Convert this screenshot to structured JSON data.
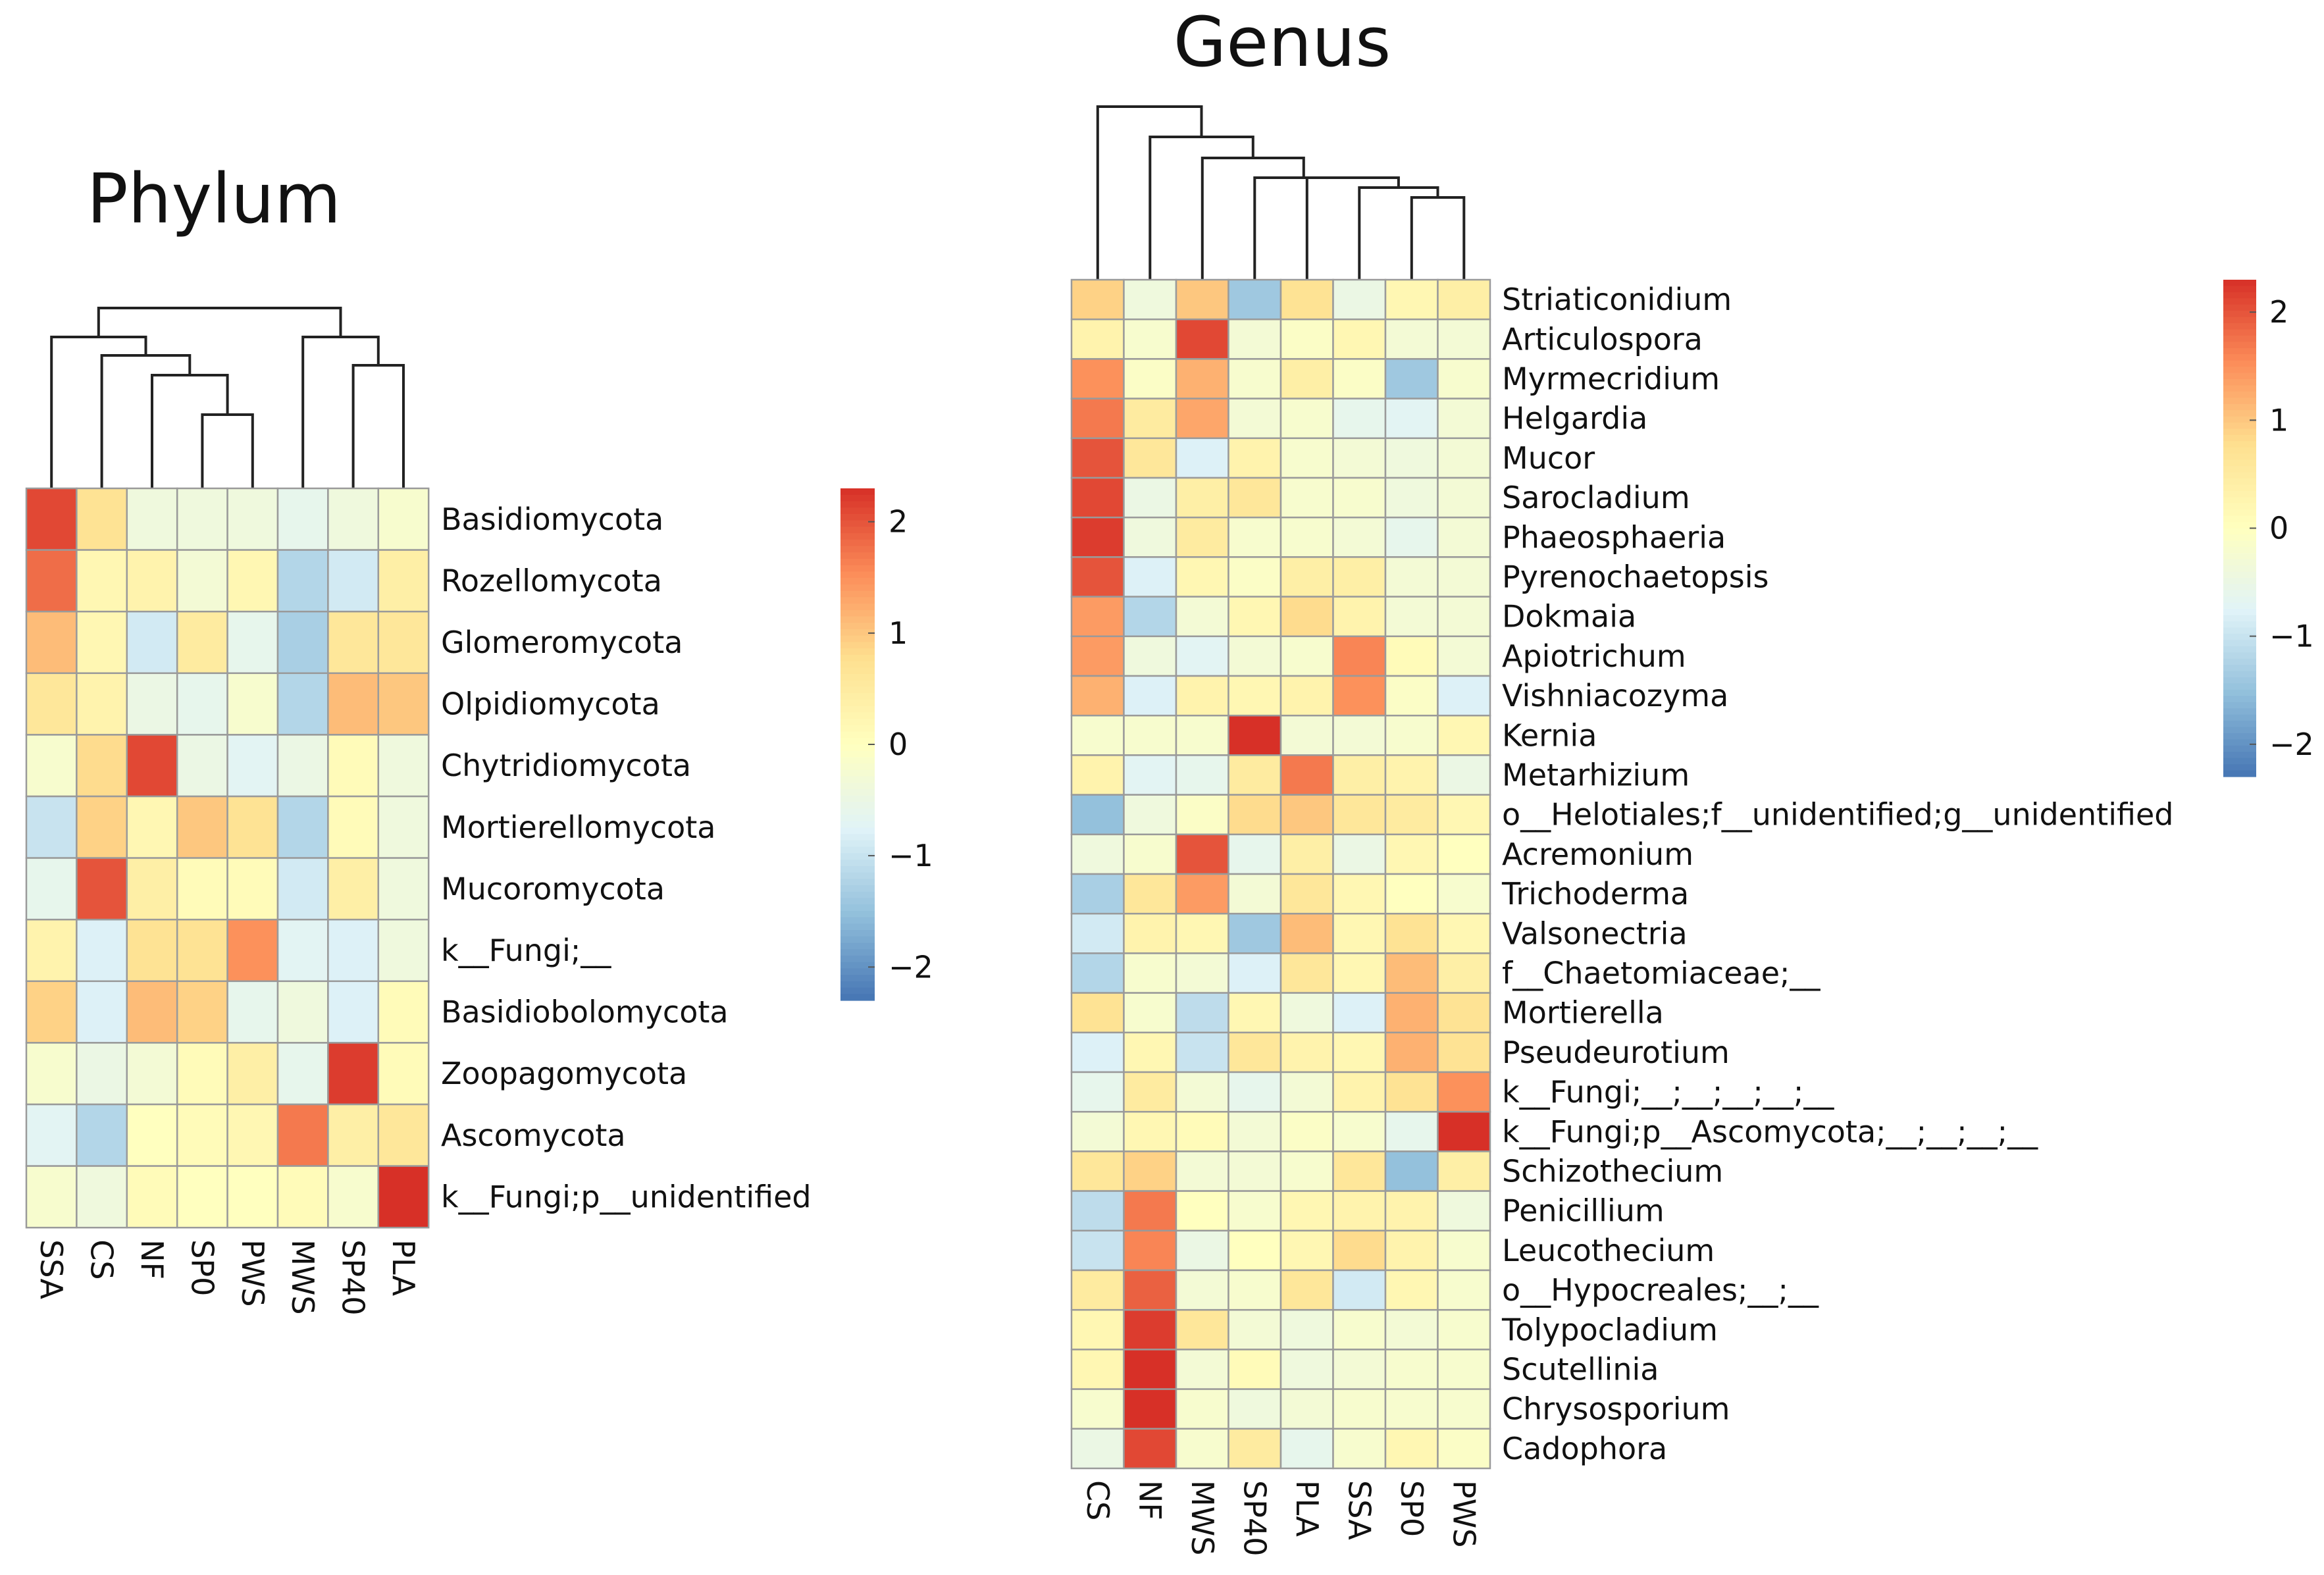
{
  "chart_data": [
    {
      "type": "heatmap",
      "title": "Phylum",
      "columns": [
        "SSA",
        "CS",
        "NF",
        "SP0",
        "PWS",
        "MWS",
        "SP40",
        "PLA"
      ],
      "rows": [
        "Basidiomycota",
        "Rozellomycota",
        "Glomeromycota",
        "Olpidiomycota",
        "Chytridiomycota",
        "Mortierellomycota",
        "Mucoromycota",
        "k__Fungi;__",
        "Basidiobolomycota",
        "Zoopagomycota",
        "Ascomycota",
        "k__Fungi;p__unidentified"
      ],
      "values": [
        [
          2.1,
          0.7,
          -0.4,
          -0.4,
          -0.4,
          -0.6,
          -0.4,
          -0.2
        ],
        [
          1.8,
          0.2,
          0.3,
          -0.3,
          0.2,
          -1.2,
          -0.9,
          0.4
        ],
        [
          1.1,
          0.2,
          -0.9,
          0.5,
          -0.6,
          -1.3,
          0.6,
          0.6
        ],
        [
          0.6,
          0.3,
          -0.5,
          -0.6,
          -0.2,
          -1.2,
          1.1,
          1.0
        ],
        [
          -0.2,
          0.8,
          2.1,
          -0.5,
          -0.7,
          -0.5,
          0.1,
          -0.4
        ],
        [
          -1.0,
          0.9,
          0.2,
          1.0,
          0.7,
          -1.2,
          0.1,
          -0.4
        ],
        [
          -0.6,
          2.0,
          0.4,
          0.1,
          0.1,
          -0.9,
          0.4,
          -0.4
        ],
        [
          0.3,
          -0.8,
          0.7,
          0.7,
          1.5,
          -0.7,
          -0.8,
          -0.4
        ],
        [
          0.9,
          -0.8,
          1.1,
          0.9,
          -0.6,
          -0.4,
          -0.8,
          0.1
        ],
        [
          -0.2,
          -0.5,
          -0.3,
          0.1,
          0.4,
          -0.6,
          2.2,
          0.1
        ],
        [
          -0.7,
          -1.2,
          0.0,
          0.1,
          0.2,
          1.7,
          0.4,
          0.6
        ],
        [
          -0.2,
          -0.4,
          0.1,
          0.0,
          0.0,
          0.1,
          -0.2,
          2.3
        ]
      ],
      "colorbar": {
        "ticks": [
          2,
          1,
          0,
          -1,
          -2
        ],
        "range": [
          -2.3,
          2.3
        ]
      },
      "legend_placement": "right",
      "column_dendrogram": true
    },
    {
      "type": "heatmap",
      "title": "Genus",
      "columns": [
        "CS",
        "NF",
        "MWS",
        "SP40",
        "PLA",
        "SSA",
        "SP0",
        "PWS"
      ],
      "rows": [
        "Striaticonidium",
        "Articulospora",
        "Myrmecridium",
        "Helgardia",
        "Mucor",
        "Sarocladium",
        "Phaeosphaeria",
        "Pyrenochaetopsis",
        "Dokmaia",
        "Apiotrichum",
        "Vishniacozyma",
        "Kernia",
        "Metarhizium",
        "o__Helotiales;f__unidentified;g__unidentified",
        "Acremonium",
        "Trichoderma",
        "Valsonectria",
        "f__Chaetomiaceae;__",
        "Mortierella",
        "Pseudeurotium",
        "k__Fungi;__;__;__;__;__",
        "k__Fungi;p__Ascomycota;__;__;__;__",
        "Schizothecium",
        "Penicillium",
        "Leucothecium",
        "o__Hypocreales;__;__",
        "Tolypocladium",
        "Scutellinia",
        "Chrysosporium",
        "Cadophora"
      ],
      "values": [
        [
          0.9,
          -0.4,
          1.0,
          -1.4,
          0.7,
          -0.5,
          0.2,
          0.4
        ],
        [
          0.3,
          -0.2,
          2.1,
          -0.3,
          -0.1,
          0.2,
          -0.3,
          -0.3
        ],
        [
          1.5,
          -0.1,
          1.2,
          -0.2,
          0.4,
          -0.1,
          -1.4,
          -0.2
        ],
        [
          1.7,
          0.5,
          1.3,
          -0.3,
          -0.2,
          -0.6,
          -0.7,
          -0.3
        ],
        [
          2.0,
          0.6,
          -0.8,
          0.3,
          -0.2,
          -0.3,
          -0.4,
          -0.3
        ],
        [
          2.1,
          -0.5,
          0.4,
          0.6,
          -0.2,
          -0.2,
          -0.4,
          -0.3
        ],
        [
          2.2,
          -0.4,
          0.5,
          -0.2,
          -0.2,
          -0.3,
          -0.6,
          -0.3
        ],
        [
          2.0,
          -0.8,
          0.2,
          -0.1,
          0.4,
          0.4,
          -0.3,
          -0.3
        ],
        [
          1.4,
          -1.2,
          -0.3,
          0.2,
          0.8,
          0.3,
          -0.3,
          -0.3
        ],
        [
          1.4,
          -0.4,
          -0.7,
          -0.3,
          -0.2,
          1.6,
          0.1,
          -0.3
        ],
        [
          1.2,
          -0.8,
          0.3,
          0.2,
          0.3,
          1.5,
          -0.1,
          -0.8
        ],
        [
          -0.2,
          -0.2,
          -0.2,
          2.3,
          -0.3,
          -0.3,
          -0.2,
          0.2
        ],
        [
          0.3,
          -0.7,
          -0.6,
          0.5,
          1.7,
          0.4,
          0.3,
          -0.5
        ],
        [
          -1.5,
          -0.4,
          -0.1,
          0.8,
          1.0,
          0.6,
          0.5,
          0.2
        ],
        [
          -0.4,
          -0.2,
          2.0,
          -0.6,
          0.4,
          -0.5,
          0.2,
          0.0
        ],
        [
          -1.3,
          0.6,
          1.4,
          -0.3,
          0.6,
          0.2,
          0.0,
          -0.2
        ],
        [
          -0.9,
          0.3,
          0.2,
          -1.4,
          1.1,
          0.2,
          0.7,
          0.2
        ],
        [
          -1.2,
          -0.2,
          -0.3,
          -0.8,
          0.6,
          0.2,
          1.1,
          0.4
        ],
        [
          0.7,
          -0.2,
          -1.1,
          0.2,
          -0.4,
          -0.8,
          1.2,
          0.7
        ],
        [
          -0.8,
          0.2,
          -1.0,
          0.6,
          0.3,
          0.2,
          1.2,
          0.7
        ],
        [
          -0.6,
          0.5,
          -0.3,
          -0.6,
          -0.3,
          0.3,
          0.7,
          1.5
        ],
        [
          -0.3,
          0.2,
          0.1,
          -0.3,
          -0.1,
          -0.2,
          -0.6,
          2.3
        ],
        [
          0.6,
          0.9,
          -0.3,
          -0.3,
          -0.2,
          0.6,
          -1.5,
          0.4
        ],
        [
          -1.1,
          1.7,
          0.0,
          -0.2,
          0.2,
          0.3,
          0.3,
          -0.4
        ],
        [
          -1.0,
          1.6,
          -0.5,
          0.0,
          0.2,
          0.8,
          0.3,
          -0.2
        ],
        [
          0.5,
          1.9,
          -0.3,
          -0.2,
          0.6,
          -0.9,
          0.2,
          -0.2
        ],
        [
          0.2,
          2.2,
          0.6,
          -0.3,
          -0.4,
          -0.2,
          -0.3,
          -0.2
        ],
        [
          0.2,
          2.3,
          -0.3,
          0.1,
          -0.4,
          -0.3,
          -0.2,
          -0.2
        ],
        [
          -0.2,
          2.3,
          -0.2,
          -0.4,
          -0.3,
          -0.2,
          -0.2,
          -0.2
        ],
        [
          -0.5,
          2.1,
          -0.2,
          0.5,
          -0.6,
          -0.2,
          0.2,
          -0.1
        ]
      ],
      "colorbar": {
        "ticks": [
          2,
          1,
          0,
          -1,
          -2
        ],
        "range": [
          -2.3,
          2.3
        ]
      },
      "legend_placement": "right",
      "column_dendrogram": true
    }
  ],
  "colors": {
    "scale": [
      "#4575b4",
      "#91bfdb",
      "#e0f3f8",
      "#ffffbf",
      "#fee090",
      "#fc8d59",
      "#d73027"
    ],
    "cell_border": "#9a9a9a",
    "dendrogram": "#222222"
  }
}
